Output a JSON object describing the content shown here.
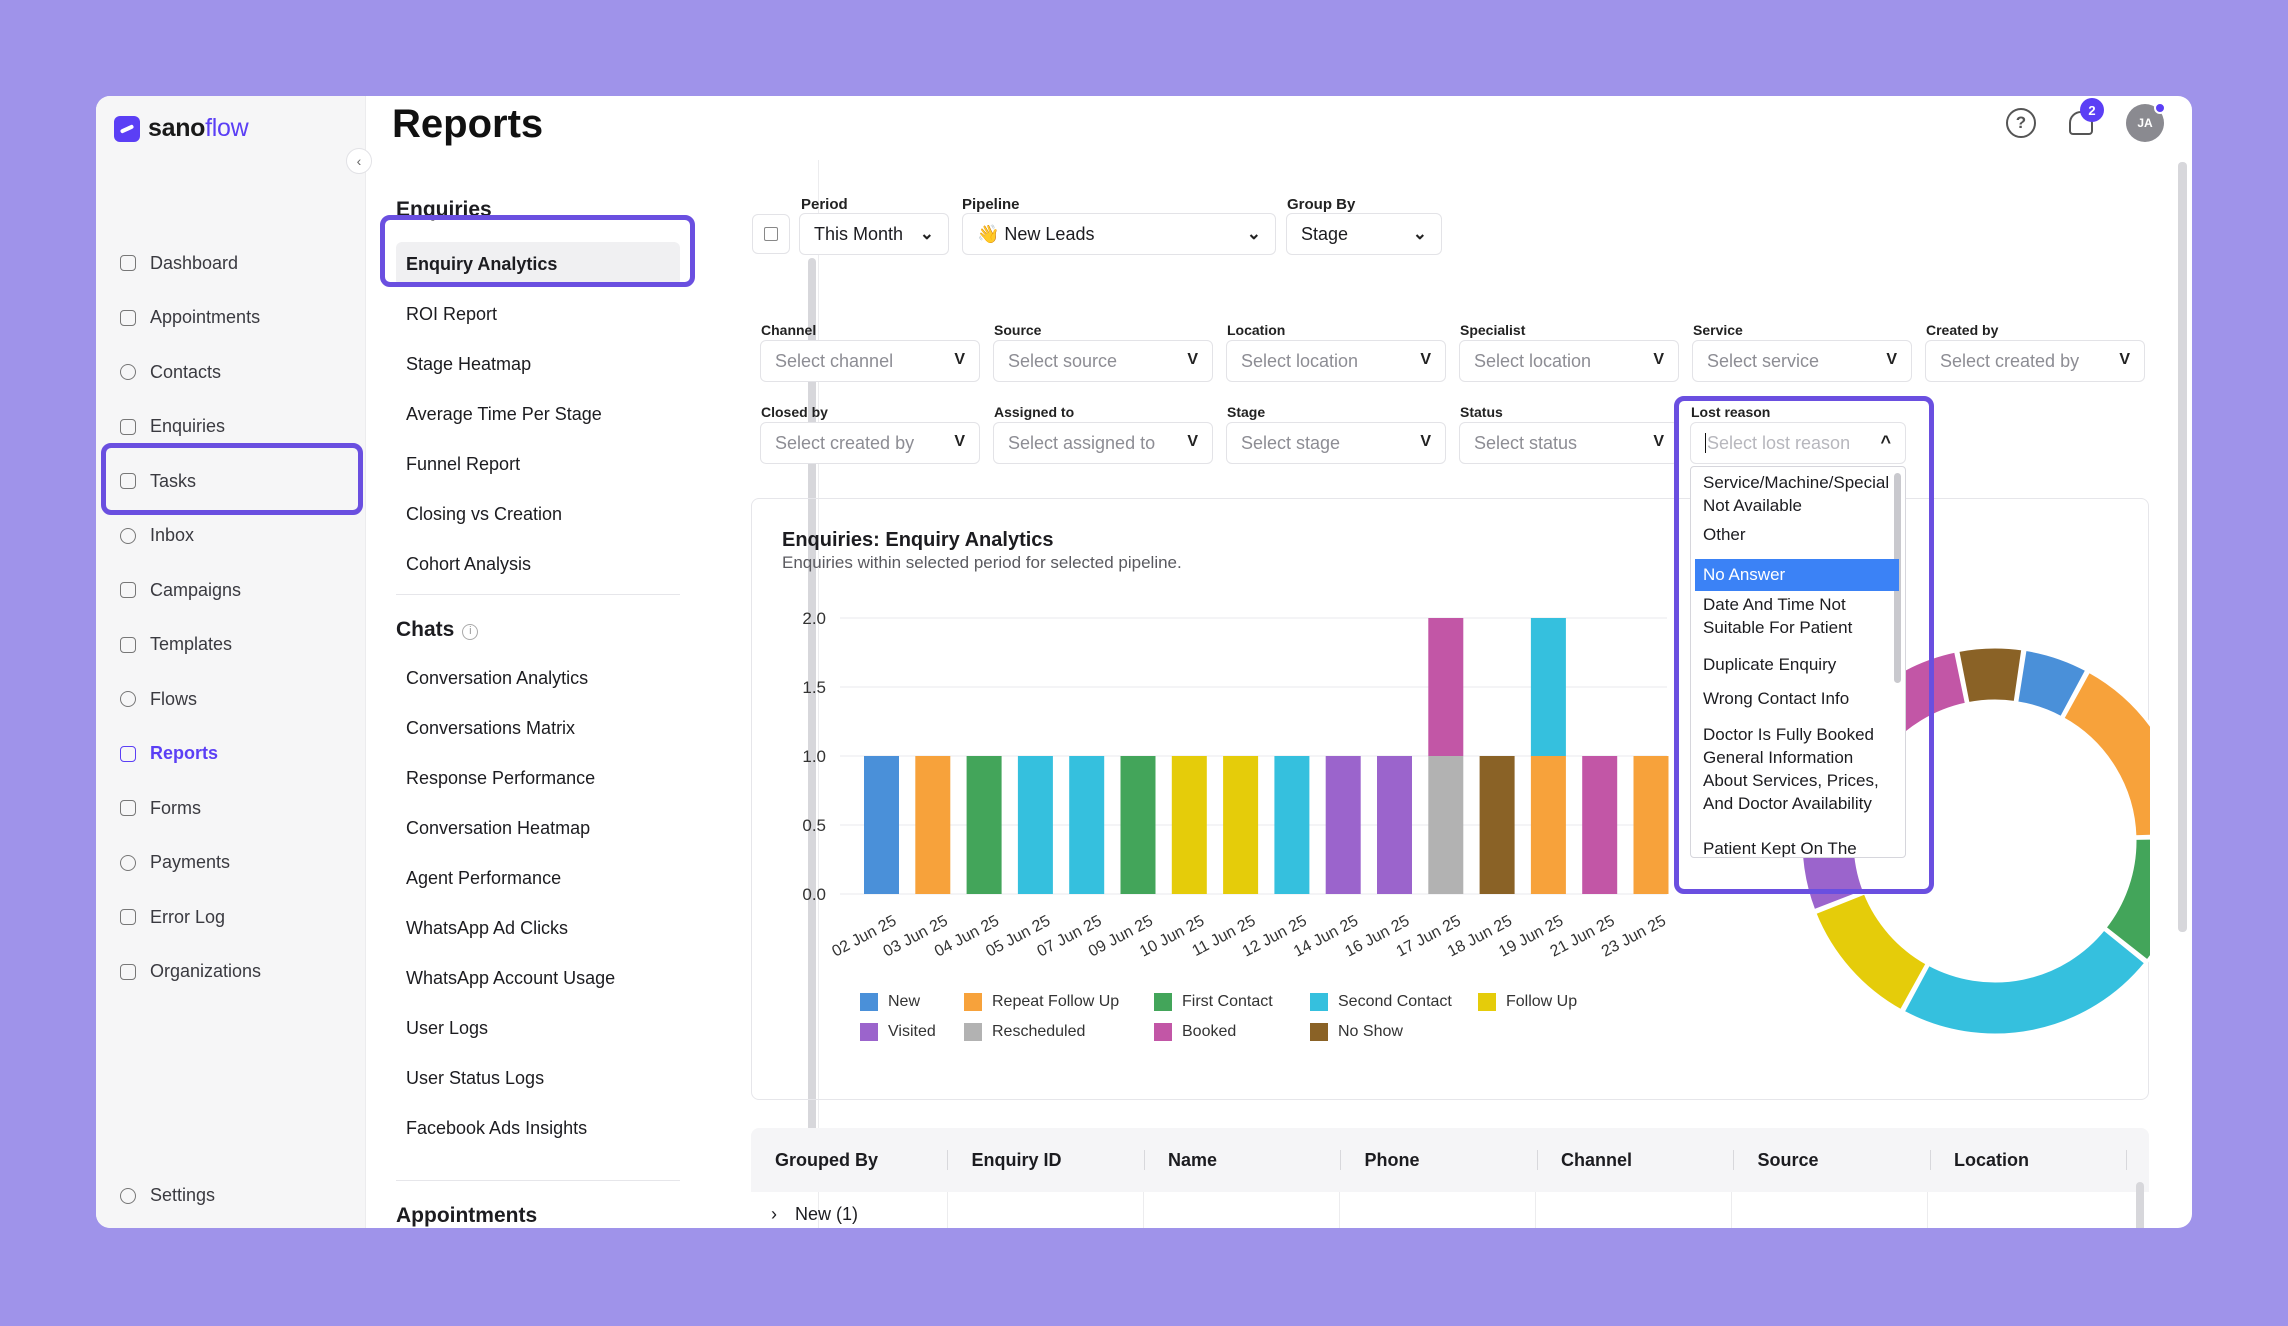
{
  "brand": {
    "name_part1": "sano",
    "name_part2": "flow"
  },
  "sidebar": {
    "items": [
      {
        "label": "Dashboard",
        "icon": "home-icon"
      },
      {
        "label": "Appointments",
        "icon": "calendar-icon"
      },
      {
        "label": "Contacts",
        "icon": "contacts-icon"
      },
      {
        "label": "Enquiries",
        "icon": "filter-icon"
      },
      {
        "label": "Tasks",
        "icon": "tasks-icon"
      },
      {
        "label": "Inbox",
        "icon": "inbox-icon"
      },
      {
        "label": "Campaigns",
        "icon": "send-icon"
      },
      {
        "label": "Templates",
        "icon": "templates-icon"
      },
      {
        "label": "Flows",
        "icon": "flows-icon"
      },
      {
        "label": "Reports",
        "icon": "reports-icon",
        "active": true
      },
      {
        "label": "Forms",
        "icon": "forms-icon"
      },
      {
        "label": "Payments",
        "icon": "payments-icon"
      },
      {
        "label": "Error Log",
        "icon": "lock-icon"
      },
      {
        "label": "Organizations",
        "icon": "organizations-icon"
      }
    ],
    "settings_label": "Settings"
  },
  "header": {
    "title": "Reports",
    "notification_count": "2",
    "avatar_initials": "JA"
  },
  "reports_menu": {
    "enquiries_heading": "Enquiries",
    "enquiries": [
      "Enquiry Analytics",
      "ROI Report",
      "Stage Heatmap",
      "Average Time Per Stage",
      "Funnel Report",
      "Closing vs Creation",
      "Cohort Analysis"
    ],
    "chats_heading": "Chats",
    "chats": [
      "Conversation Analytics",
      "Conversations Matrix",
      "Response Performance",
      "Conversation Heatmap",
      "Agent Performance",
      "WhatsApp Ad Clicks",
      "WhatsApp Account Usage",
      "User Logs",
      "User Status Logs",
      "Facebook Ads Insights"
    ],
    "next_heading_partial": "Appointments"
  },
  "filters": {
    "period": {
      "label": "Period",
      "value": "This Month"
    },
    "pipeline": {
      "label": "Pipeline",
      "value": "👋 New Leads"
    },
    "group_by": {
      "label": "Group By",
      "value": "Stage"
    },
    "channel": {
      "label": "Channel",
      "placeholder": "Select channel"
    },
    "source": {
      "label": "Source",
      "placeholder": "Select source"
    },
    "location": {
      "label": "Location",
      "placeholder": "Select location"
    },
    "specialist": {
      "label": "Specialist",
      "placeholder": "Select location"
    },
    "service": {
      "label": "Service",
      "placeholder": "Select service"
    },
    "created_by": {
      "label": "Created by",
      "placeholder": "Select created by"
    },
    "closed_by": {
      "label": "Closed by",
      "placeholder": "Select created by"
    },
    "assigned_to": {
      "label": "Assigned to",
      "placeholder": "Select assigned to"
    },
    "stage": {
      "label": "Stage",
      "placeholder": "Select stage"
    },
    "status": {
      "label": "Status",
      "placeholder": "Select status"
    },
    "lost_reason": {
      "label": "Lost reason",
      "placeholder": "Select lost reason",
      "options": [
        "Service/Machine/Special Not Available",
        "Other",
        "No Answer",
        "Date And Time Not Suitable For Patient",
        "Duplicate Enquiry",
        "Wrong Contact Info",
        "Doctor Is Fully Booked",
        "General Information About Services, Prices, And Doctor Availability",
        "Patient Kept On The"
      ],
      "highlighted": "No Answer"
    }
  },
  "chart_card": {
    "title": "Enquiries: Enquiry Analytics",
    "subtitle": "Enquiries within selected period for selected pipeline."
  },
  "chart_data": [
    {
      "type": "bar",
      "stacked": true,
      "categories": [
        "02 Jun 25",
        "03 Jun 25",
        "04 Jun 25",
        "05 Jun 25",
        "07 Jun 25",
        "09 Jun 25",
        "10 Jun 25",
        "11 Jun 25",
        "12 Jun 25",
        "14 Jun 25",
        "16 Jun 25",
        "17 Jun 25",
        "18 Jun 25",
        "19 Jun 25",
        "21 Jun 25",
        "23 Jun 25"
      ],
      "bars": [
        [
          {
            "series": "New",
            "value": 1
          }
        ],
        [
          {
            "series": "Repeat Follow Up",
            "value": 1
          }
        ],
        [
          {
            "series": "First Contact",
            "value": 1
          }
        ],
        [
          {
            "series": "Second Contact",
            "value": 1
          }
        ],
        [
          {
            "series": "Second Contact",
            "value": 1
          }
        ],
        [
          {
            "series": "First Contact",
            "value": 1
          }
        ],
        [
          {
            "series": "Follow Up",
            "value": 1
          }
        ],
        [
          {
            "series": "Follow Up",
            "value": 1
          }
        ],
        [
          {
            "series": "Second Contact",
            "value": 1
          }
        ],
        [
          {
            "series": "Visited",
            "value": 1
          }
        ],
        [
          {
            "series": "Visited",
            "value": 1
          }
        ],
        [
          {
            "series": "Rescheduled",
            "value": 1
          },
          {
            "series": "Booked",
            "value": 1
          }
        ],
        [
          {
            "series": "No Show",
            "value": 1
          }
        ],
        [
          {
            "series": "Repeat Follow Up",
            "value": 1
          },
          {
            "series": "Second Contact",
            "value": 1
          }
        ],
        [
          {
            "series": "Booked",
            "value": 1
          }
        ],
        [
          {
            "series": "Repeat Follow Up",
            "value": 1
          }
        ]
      ],
      "ylim": [
        0,
        2.0
      ],
      "yticks": [
        "0.0",
        "0.5",
        "1.0",
        "1.5",
        "2.0"
      ],
      "grid": "horizontal",
      "legend_position": "bottom-left",
      "legend": [
        {
          "name": "New",
          "color": "#4a90d9"
        },
        {
          "name": "Repeat Follow Up",
          "color": "#f7a23b"
        },
        {
          "name": "First Contact",
          "color": "#43a55a"
        },
        {
          "name": "Second Contact",
          "color": "#35c0de"
        },
        {
          "name": "Follow Up",
          "color": "#e5cc0a"
        },
        {
          "name": "Visited",
          "color": "#9b64cc"
        },
        {
          "name": "Rescheduled",
          "color": "#b2b2b2"
        },
        {
          "name": "Booked",
          "color": "#c256a6"
        },
        {
          "name": "No Show",
          "color": "#8a6226"
        }
      ]
    },
    {
      "type": "pie",
      "donut": true,
      "partially_hidden_by_dropdown": true,
      "slices": [
        {
          "series": "New",
          "value": 1,
          "color": "#4a90d9"
        },
        {
          "series": "Repeat Follow Up",
          "value": 3,
          "color": "#f7a23b"
        },
        {
          "series": "First Contact",
          "value": 2,
          "color": "#43a55a"
        },
        {
          "series": "Second Contact",
          "value": 4,
          "color": "#35c0de"
        },
        {
          "series": "Follow Up",
          "value": 2,
          "color": "#e5cc0a"
        },
        {
          "series": "Visited",
          "value": 2,
          "color": "#9b64cc"
        },
        {
          "series": "Rescheduled",
          "value": 1,
          "color": "#b2b2b2"
        },
        {
          "series": "Booked",
          "value": 2,
          "color": "#c256a6"
        },
        {
          "series": "No Show",
          "value": 1,
          "color": "#8a6226"
        }
      ]
    }
  ],
  "table": {
    "columns": [
      "Grouped By",
      "Enquiry ID",
      "Name",
      "Phone",
      "Channel",
      "Source",
      "Location"
    ],
    "rows": [
      {
        "group": "New (1)"
      }
    ]
  }
}
